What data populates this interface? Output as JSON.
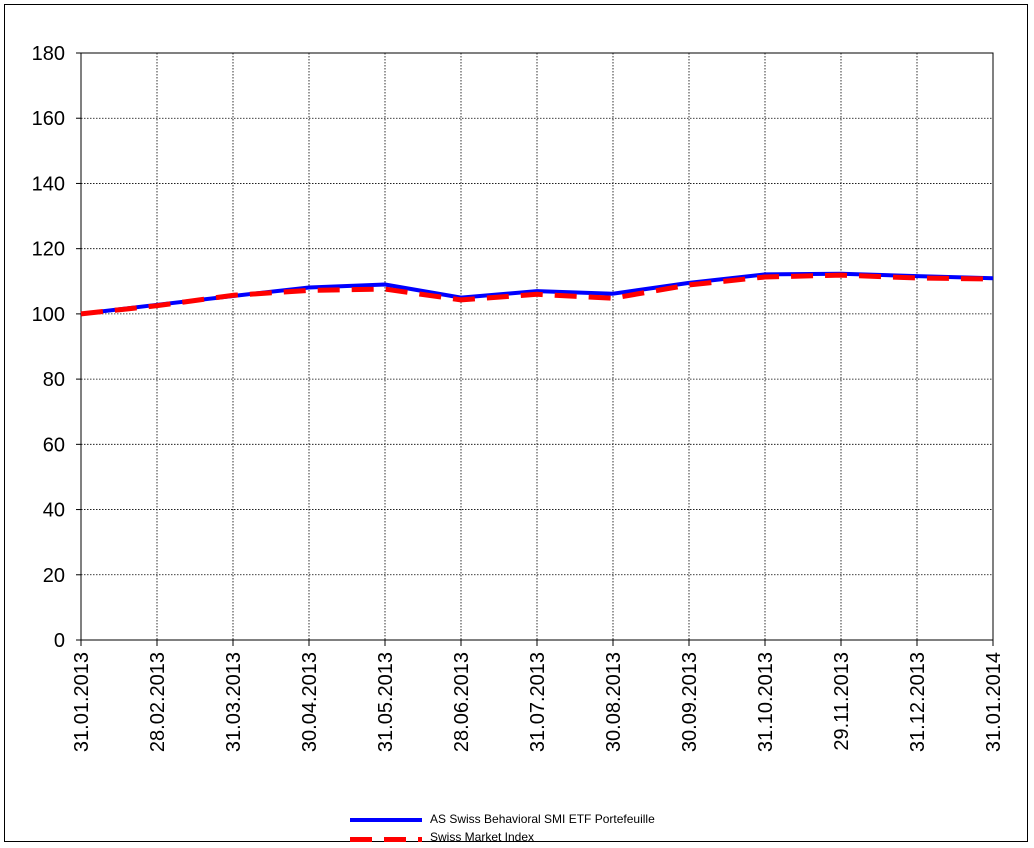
{
  "chart_data": {
    "type": "line",
    "title": "",
    "xlabel": "",
    "ylabel": "",
    "ylim": [
      0,
      180
    ],
    "yticks": [
      0,
      20,
      40,
      60,
      80,
      100,
      120,
      140,
      160,
      180
    ],
    "grid": true,
    "legend_position": "bottom",
    "categories": [
      "31.01.2013",
      "28.02.2013",
      "31.03.2013",
      "30.04.2013",
      "31.05.2013",
      "28.06.2013",
      "31.07.2013",
      "30.08.2013",
      "30.09.2013",
      "31.10.2013",
      "29.11.2013",
      "31.12.2013",
      "31.01.2014"
    ],
    "series": [
      {
        "name": "AS Swiss Behavioral SMI ETF Portefeuille",
        "color": "#0000ff",
        "style": "solid",
        "values": [
          100,
          102.8,
          105.5,
          108.1,
          109,
          105,
          107,
          106.2,
          109.5,
          112.1,
          112.3,
          111.6,
          110.9
        ]
      },
      {
        "name": "Swiss Market Index",
        "color": "#ff0000",
        "style": "dashed",
        "values": [
          100,
          102.5,
          105.7,
          107.2,
          107.6,
          104.3,
          106,
          104.8,
          108.9,
          111.3,
          111.9,
          111,
          110.7
        ]
      }
    ]
  }
}
